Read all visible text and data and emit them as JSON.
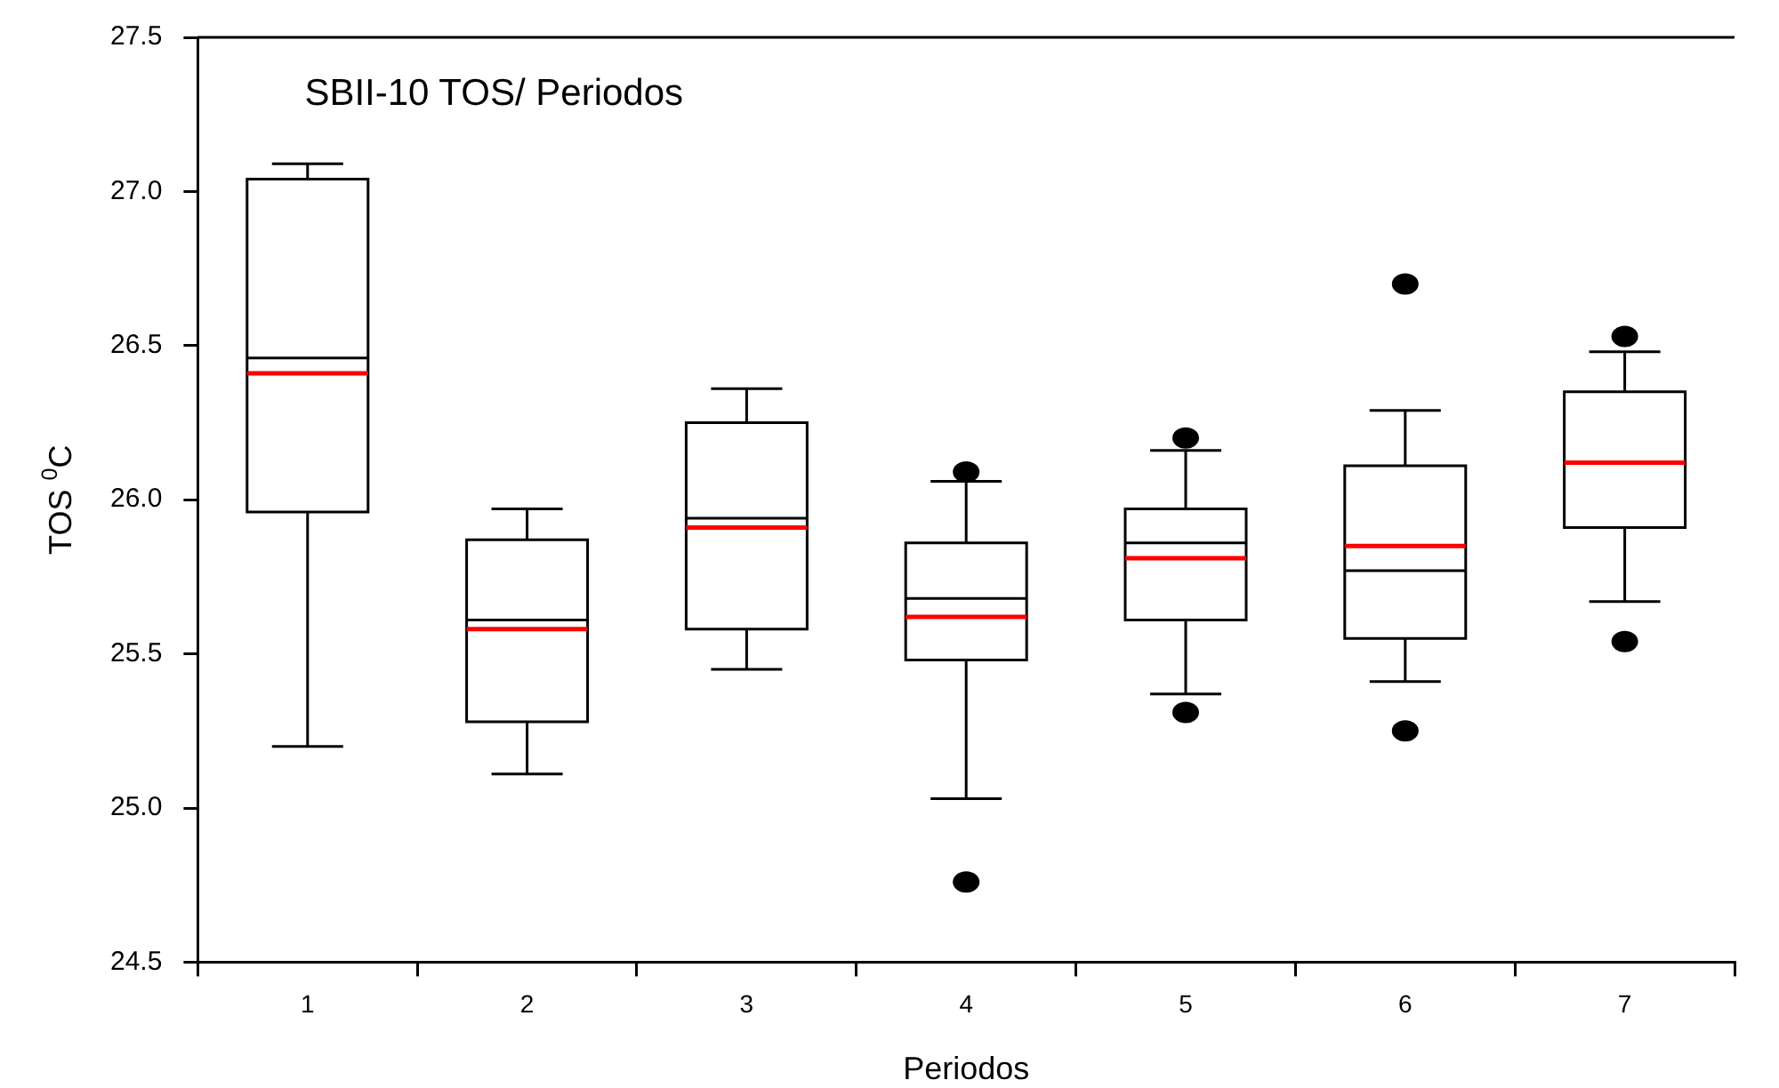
{
  "chart_data": {
    "type": "box",
    "title": "SBII-10 TOS/ Periodos",
    "xlabel": "Periodos",
    "ylabel": "TOS $^{0}$C",
    "categories": [
      "1",
      "2",
      "3",
      "4",
      "5",
      "6",
      "7"
    ],
    "color": "#000000",
    "ylim": [
      24.5,
      27.5
    ],
    "yticks": [
      {
        "value": 24.5,
        "label": "24.5"
      },
      {
        "value": 25,
        "label": "25.0"
      },
      {
        "value": 25.5,
        "label": "25.5"
      },
      {
        "value": 26,
        "label": "26.0"
      },
      {
        "value": 26.5,
        "label": "26.5"
      },
      {
        "value": 27,
        "label": "27.0"
      },
      {
        "value": 27.5,
        "label": "27.5"
      }
    ],
    "grid": false,
    "legend": false,
    "boxes": [
      {
        "low": 25.2,
        "q1": 25.96,
        "median": 26.46,
        "q3": 27.04,
        "high": 27.09,
        "mean": 26.41
      },
      {
        "low": 25.11,
        "q1": 25.28,
        "median": 25.61,
        "q3": 25.87,
        "high": 25.97,
        "mean": 25.58
      },
      {
        "low": 25.45,
        "q1": 25.58,
        "median": 25.94,
        "q3": 26.25,
        "high": 26.36,
        "mean": 25.91
      },
      {
        "low": 25.03,
        "q1": 25.48,
        "median": 25.68,
        "q3": 25.86,
        "high": 26.06,
        "mean": 25.62,
        "outliers": [
          26.09,
          24.76
        ]
      },
      {
        "low": 25.37,
        "q1": 25.61,
        "median": 25.86,
        "q3": 25.97,
        "high": 26.16,
        "mean": 25.81,
        "outliers": [
          26.2,
          25.31
        ]
      },
      {
        "low": 25.41,
        "q1": 25.55,
        "median": 25.77,
        "q3": 26.11,
        "high": 26.29,
        "mean": 25.85,
        "outliers": [
          26.7,
          25.25
        ]
      },
      {
        "low": 25.67,
        "q1": 25.91,
        "median": 26.12,
        "q3": 26.35,
        "high": 26.48,
        "mean": 26.12,
        "outliers": [
          26.53,
          25.54
        ]
      }
    ]
  }
}
